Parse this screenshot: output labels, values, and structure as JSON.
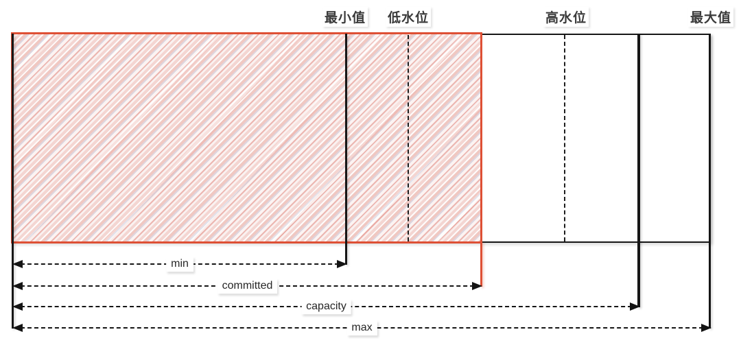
{
  "diagram": {
    "watermark_labels": [
      {
        "id": "min-value",
        "text": "最小值"
      },
      {
        "id": "low-watermark",
        "text": "低水位"
      },
      {
        "id": "high-watermark",
        "text": "高水位"
      },
      {
        "id": "max-value",
        "text": "最大值"
      }
    ],
    "measure_arrows": [
      {
        "id": "min",
        "label": "min"
      },
      {
        "id": "committed",
        "label": "committed"
      },
      {
        "id": "capacity",
        "label": "capacity"
      },
      {
        "id": "max",
        "label": "max"
      }
    ],
    "colors": {
      "committed_border": "#de5035",
      "line": "#161616",
      "hatch_fill": "#f5e0dd"
    }
  }
}
